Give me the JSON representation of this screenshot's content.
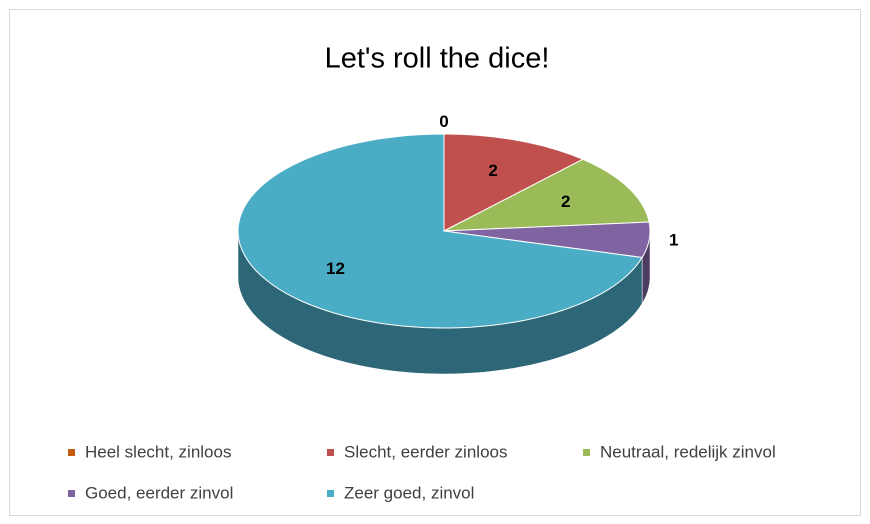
{
  "chart_data": {
    "type": "pie",
    "title": "Let's roll the dice!",
    "categories": [
      "Heel slecht, zinloos",
      "Slecht, eerder zinloos",
      "Neutraal, redelijk zinvol",
      "Goed, eerder zinvol",
      "Zeer goed, zinvol"
    ],
    "values": [
      0,
      2,
      2,
      1,
      12
    ],
    "colors": [
      "#c55a11",
      "#c0504d",
      "#9bbb59",
      "#8064a2",
      "#4bacc6"
    ],
    "three_d": true,
    "legend": "bottom"
  }
}
